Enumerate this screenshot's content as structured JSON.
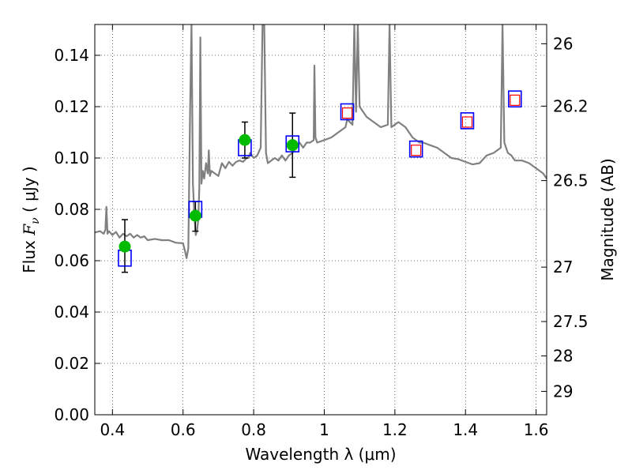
{
  "chart_data": {
    "type": "line",
    "xlabel": "Wavelength  λ (μm)",
    "ylabel_prefix": "Flux ",
    "ylabel_symbol": "F",
    "ylabel_subscript": "ν",
    "ylabel_units": " ( μJy )",
    "y2label": "Magnitude (AB)",
    "xlim": [
      0.35,
      1.63
    ],
    "ylim": [
      0.0,
      0.152
    ],
    "grid": true,
    "x_ticks": [
      0.4,
      0.6,
      0.8,
      1.0,
      1.2,
      1.4,
      1.6
    ],
    "x_tick_labels": [
      "0.4",
      "0.6",
      "0.8",
      "1",
      "1.2",
      "1.4",
      "1.6"
    ],
    "y_ticks": [
      0.0,
      0.02,
      0.04,
      0.06,
      0.08,
      0.1,
      0.12,
      0.14
    ],
    "y_tick_labels": [
      "0.00",
      "0.02",
      "0.04",
      "0.06",
      "0.08",
      "0.10",
      "0.12",
      "0.14"
    ],
    "y2_ticks": [
      {
        "label": "26",
        "flux": 0.1445
      },
      {
        "label": "26.2",
        "flux": 0.1202
      },
      {
        "label": "26.5",
        "flux": 0.0912
      },
      {
        "label": "27",
        "flux": 0.0575
      },
      {
        "label": "27.5",
        "flux": 0.0363
      },
      {
        "label": "28",
        "flux": 0.0229
      },
      {
        "label": "29",
        "flux": 0.0091
      }
    ],
    "series": [
      {
        "kind": "spectrum",
        "color": "#808080",
        "points": [
          [
            0.35,
            0.071
          ],
          [
            0.365,
            0.0715
          ],
          [
            0.375,
            0.0705
          ],
          [
            0.38,
            0.072
          ],
          [
            0.383,
            0.081
          ],
          [
            0.386,
            0.0705
          ],
          [
            0.39,
            0.0715
          ],
          [
            0.4,
            0.07
          ],
          [
            0.41,
            0.0712
          ],
          [
            0.42,
            0.069
          ],
          [
            0.43,
            0.0705
          ],
          [
            0.44,
            0.0695
          ],
          [
            0.45,
            0.0705
          ],
          [
            0.46,
            0.069
          ],
          [
            0.47,
            0.07
          ],
          [
            0.48,
            0.069
          ],
          [
            0.49,
            0.0695
          ],
          [
            0.5,
            0.068
          ],
          [
            0.52,
            0.0685
          ],
          [
            0.54,
            0.068
          ],
          [
            0.56,
            0.068
          ],
          [
            0.58,
            0.067
          ],
          [
            0.6,
            0.0668
          ],
          [
            0.605,
            0.064
          ],
          [
            0.61,
            0.061
          ],
          [
            0.615,
            0.065
          ],
          [
            0.62,
            0.12
          ],
          [
            0.624,
            0.152
          ],
          [
            0.628,
            0.09
          ],
          [
            0.632,
            0.078
          ],
          [
            0.636,
            0.07
          ],
          [
            0.64,
            0.072
          ],
          [
            0.643,
            0.076
          ],
          [
            0.646,
            0.088
          ],
          [
            0.649,
            0.147
          ],
          [
            0.652,
            0.09
          ],
          [
            0.656,
            0.095
          ],
          [
            0.66,
            0.092
          ],
          [
            0.665,
            0.098
          ],
          [
            0.67,
            0.094
          ],
          [
            0.673,
            0.103
          ],
          [
            0.676,
            0.093
          ],
          [
            0.68,
            0.095
          ],
          [
            0.69,
            0.094
          ],
          [
            0.7,
            0.093
          ],
          [
            0.71,
            0.098
          ],
          [
            0.72,
            0.096
          ],
          [
            0.73,
            0.0985
          ],
          [
            0.74,
            0.097
          ],
          [
            0.75,
            0.0985
          ],
          [
            0.76,
            0.099
          ],
          [
            0.77,
            0.0985
          ],
          [
            0.78,
            0.1
          ],
          [
            0.785,
            0.1
          ],
          [
            0.79,
            0.102
          ],
          [
            0.8,
            0.1
          ],
          [
            0.81,
            0.101
          ],
          [
            0.82,
            0.104
          ],
          [
            0.825,
            0.152
          ],
          [
            0.83,
            0.152
          ],
          [
            0.835,
            0.102
          ],
          [
            0.84,
            0.098
          ],
          [
            0.85,
            0.099
          ],
          [
            0.86,
            0.1
          ],
          [
            0.87,
            0.099
          ],
          [
            0.88,
            0.101
          ],
          [
            0.89,
            0.099
          ],
          [
            0.9,
            0.101
          ],
          [
            0.91,
            0.102
          ],
          [
            0.92,
            0.104
          ],
          [
            0.93,
            0.106
          ],
          [
            0.94,
            0.104
          ],
          [
            0.95,
            0.106
          ],
          [
            0.96,
            0.106
          ],
          [
            0.97,
            0.107
          ],
          [
            0.972,
            0.136
          ],
          [
            0.975,
            0.108
          ],
          [
            0.98,
            0.106
          ],
          [
            1.0,
            0.107
          ],
          [
            1.02,
            0.108
          ],
          [
            1.04,
            0.11
          ],
          [
            1.06,
            0.112
          ],
          [
            1.065,
            0.115
          ],
          [
            1.08,
            0.113
          ],
          [
            1.085,
            0.152
          ],
          [
            1.09,
            0.118
          ],
          [
            1.095,
            0.152
          ],
          [
            1.1,
            0.12
          ],
          [
            1.12,
            0.116
          ],
          [
            1.14,
            0.114
          ],
          [
            1.16,
            0.112
          ],
          [
            1.18,
            0.113
          ],
          [
            1.185,
            0.152
          ],
          [
            1.19,
            0.112
          ],
          [
            1.2,
            0.113
          ],
          [
            1.21,
            0.114
          ],
          [
            1.22,
            0.113
          ],
          [
            1.23,
            0.112
          ],
          [
            1.24,
            0.11
          ],
          [
            1.25,
            0.108
          ],
          [
            1.27,
            0.106
          ],
          [
            1.28,
            0.106
          ],
          [
            1.3,
            0.105
          ],
          [
            1.32,
            0.104
          ],
          [
            1.34,
            0.102
          ],
          [
            1.36,
            0.1
          ],
          [
            1.38,
            0.0995
          ],
          [
            1.4,
            0.0985
          ],
          [
            1.42,
            0.0975
          ],
          [
            1.44,
            0.098
          ],
          [
            1.46,
            0.101
          ],
          [
            1.48,
            0.102
          ],
          [
            1.5,
            0.104
          ],
          [
            1.505,
            0.152
          ],
          [
            1.51,
            0.106
          ],
          [
            1.52,
            0.102
          ],
          [
            1.53,
            0.101
          ],
          [
            1.54,
            0.099
          ],
          [
            1.56,
            0.099
          ],
          [
            1.58,
            0.098
          ],
          [
            1.6,
            0.096
          ],
          [
            1.62,
            0.094
          ],
          [
            1.63,
            0.092
          ]
        ]
      },
      {
        "kind": "observed",
        "color": "#00bb00",
        "points": [
          {
            "x": 0.435,
            "y": 0.0655,
            "err_low": 0.0555,
            "err_high": 0.076
          },
          {
            "x": 0.635,
            "y": 0.0775,
            "err_low": 0.0715,
            "err_high": 0.083
          },
          {
            "x": 0.775,
            "y": 0.107,
            "err_low": 0.1,
            "err_high": 0.114
          },
          {
            "x": 0.91,
            "y": 0.105,
            "err_low": 0.0925,
            "err_high": 0.1175
          }
        ]
      },
      {
        "kind": "model-boxes",
        "color": "#0000ff",
        "points": [
          {
            "x": 0.435,
            "y": 0.061
          },
          {
            "x": 0.635,
            "y": 0.08
          },
          {
            "x": 0.775,
            "y": 0.104
          },
          {
            "x": 0.91,
            "y": 0.1055
          },
          {
            "x": 1.065,
            "y": 0.118
          },
          {
            "x": 1.26,
            "y": 0.1035
          },
          {
            "x": 1.405,
            "y": 0.1145
          },
          {
            "x": 1.54,
            "y": 0.123
          }
        ]
      },
      {
        "kind": "predicted-boxes",
        "color": "#ff0000",
        "points": [
          {
            "x": 1.065,
            "y": 0.1175
          },
          {
            "x": 1.26,
            "y": 0.103
          },
          {
            "x": 1.405,
            "y": 0.114
          },
          {
            "x": 1.54,
            "y": 0.1225
          }
        ]
      }
    ]
  }
}
